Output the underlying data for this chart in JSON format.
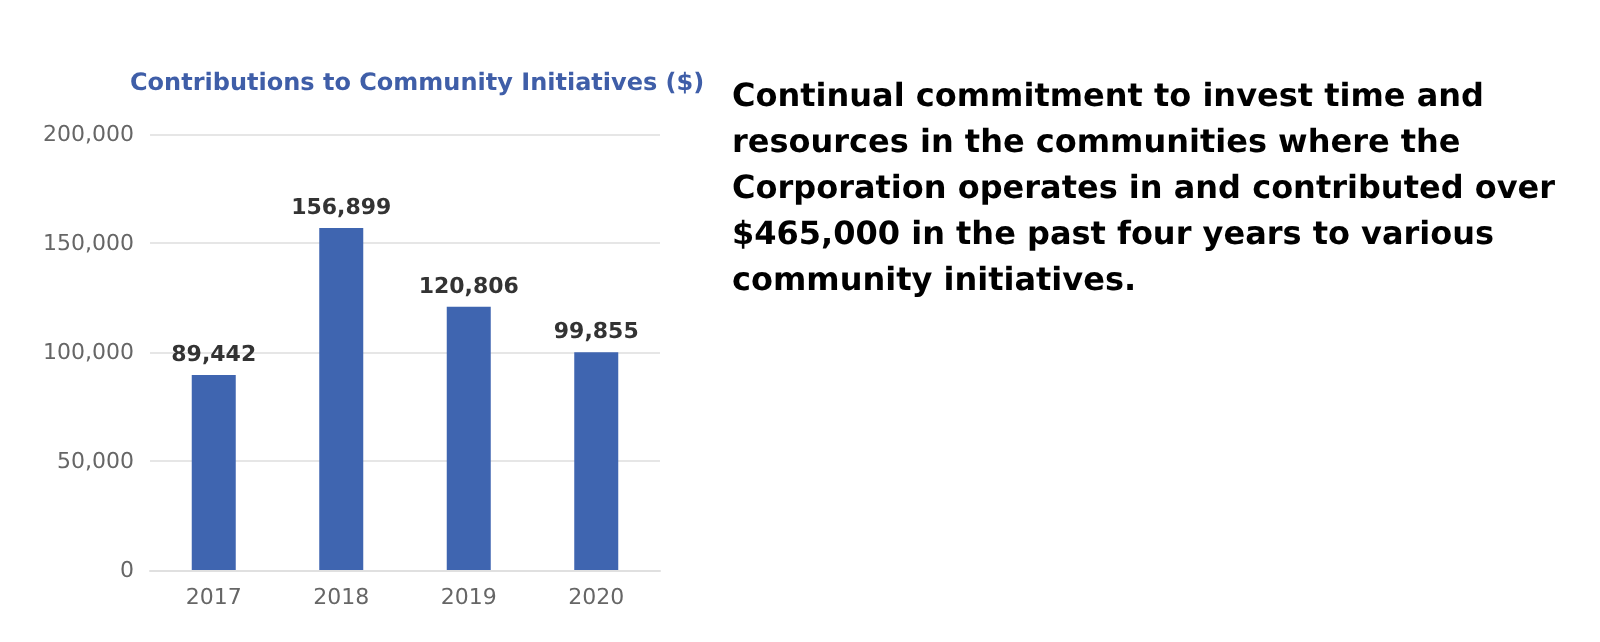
{
  "chart_data": {
    "type": "bar",
    "title": "Contributions to Community Initiatives ($)",
    "categories": [
      "2017",
      "2018",
      "2019",
      "2020"
    ],
    "values": [
      89442,
      156899,
      120806,
      99855
    ],
    "value_labels": [
      "89,442",
      "156,899",
      "120,806",
      "99,855"
    ],
    "color": "#3f65b0",
    "ylim": [
      0,
      200000
    ],
    "yticks": [
      {
        "value": 0,
        "label": "0"
      },
      {
        "value": 50000,
        "label": "50,000"
      },
      {
        "value": 100000,
        "label": "100,000"
      },
      {
        "value": 150000,
        "label": "150,000"
      },
      {
        "value": 200000,
        "label": "200,000"
      }
    ],
    "grid": "y",
    "annotations": [
      "Continual commitment to invest time and resources in the communities where the Corporation operates in and contributed over $465,000 in the past four years to various community initiatives."
    ]
  }
}
